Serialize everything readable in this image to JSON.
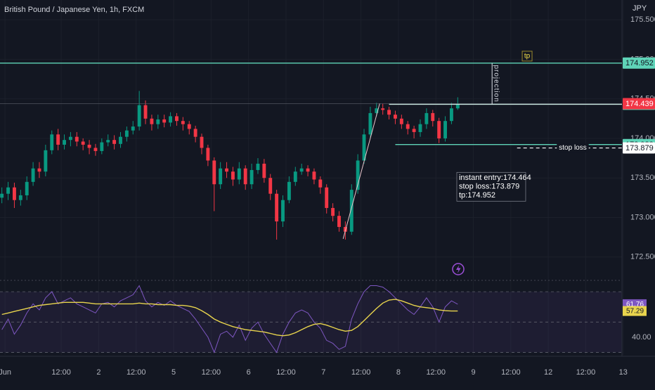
{
  "chart_data": [
    {
      "type": "candlestick",
      "title": "British Pound / Japanese Yen, 1h, FXCM",
      "unit_label": "JPY",
      "x": [
        -1,
        1,
        3,
        5,
        7,
        9,
        11,
        13,
        15,
        17,
        19,
        21,
        23,
        25,
        27,
        29,
        31,
        33,
        35,
        37,
        39,
        41,
        43,
        45,
        47,
        49,
        51,
        53,
        55,
        57,
        59,
        61,
        63,
        65,
        67,
        69,
        71,
        73,
        75,
        77,
        79,
        81,
        83,
        85,
        87,
        89,
        91,
        93,
        95,
        97,
        99,
        101,
        103,
        105,
        107,
        109,
        111,
        113,
        115,
        117,
        119,
        121,
        123,
        125,
        127,
        129,
        131,
        133,
        135,
        137,
        139,
        141,
        143,
        145
      ],
      "open": [
        173.25,
        173.3,
        173.38,
        173.22,
        173.28,
        173.45,
        173.62,
        173.58,
        173.85,
        174.05,
        173.92,
        173.98,
        174.02,
        173.96,
        173.92,
        173.88,
        173.84,
        173.95,
        173.98,
        173.93,
        174.02,
        174.1,
        174.15,
        174.42,
        174.25,
        174.18,
        174.24,
        174.2,
        174.28,
        174.22,
        174.18,
        174.12,
        174.02,
        173.88,
        173.72,
        173.42,
        173.62,
        173.58,
        173.48,
        173.62,
        173.42,
        173.6,
        173.68,
        173.5,
        173.3,
        172.95,
        173.22,
        173.45,
        173.58,
        173.62,
        173.58,
        173.48,
        173.38,
        173.12,
        173.02,
        172.88,
        172.82,
        173.35,
        173.72,
        174.05,
        174.32,
        174.38,
        174.36,
        174.3,
        174.25,
        174.18,
        174.12,
        174.08,
        174.18,
        174.32,
        174.22,
        174.0,
        174.22,
        174.38
      ],
      "high": [
        173.38,
        173.45,
        173.44,
        173.35,
        173.52,
        173.7,
        173.7,
        173.92,
        174.1,
        174.12,
        174.05,
        174.08,
        174.08,
        174.0,
        173.98,
        173.93,
        174.0,
        174.05,
        174.04,
        174.08,
        174.15,
        174.22,
        174.6,
        174.48,
        174.3,
        174.3,
        174.3,
        174.33,
        174.32,
        174.27,
        174.22,
        174.16,
        174.06,
        173.92,
        173.76,
        173.7,
        173.7,
        173.64,
        173.7,
        173.66,
        173.68,
        173.75,
        173.74,
        173.55,
        173.35,
        173.28,
        173.52,
        173.64,
        173.68,
        173.66,
        173.62,
        173.52,
        173.42,
        173.18,
        173.08,
        172.95,
        173.42,
        173.8,
        174.12,
        174.4,
        174.45,
        174.44,
        174.4,
        174.35,
        174.3,
        174.22,
        174.16,
        174.24,
        174.38,
        174.36,
        174.26,
        174.28,
        174.45,
        174.52
      ],
      "low": [
        173.18,
        173.22,
        173.12,
        173.15,
        173.22,
        173.4,
        173.5,
        173.52,
        173.8,
        173.85,
        173.86,
        173.9,
        173.9,
        173.85,
        173.8,
        173.78,
        173.8,
        173.9,
        173.86,
        173.88,
        173.96,
        174.05,
        174.1,
        174.18,
        174.1,
        174.12,
        174.14,
        174.15,
        174.16,
        174.1,
        174.05,
        173.95,
        173.8,
        173.65,
        173.08,
        173.36,
        173.5,
        173.4,
        173.42,
        173.35,
        173.36,
        173.55,
        173.44,
        173.22,
        172.72,
        172.88,
        173.18,
        173.4,
        173.54,
        173.52,
        173.42,
        173.3,
        173.05,
        172.95,
        172.82,
        172.72,
        172.78,
        173.3,
        173.68,
        174.0,
        174.28,
        174.3,
        174.24,
        174.18,
        174.12,
        174.05,
        174.0,
        174.02,
        174.12,
        174.15,
        173.94,
        173.96,
        174.18,
        174.36
      ],
      "close": [
        173.3,
        173.38,
        173.22,
        173.28,
        173.45,
        173.62,
        173.58,
        173.85,
        174.05,
        173.92,
        173.98,
        174.02,
        173.96,
        173.92,
        173.88,
        173.84,
        173.95,
        173.98,
        173.93,
        174.02,
        174.1,
        174.15,
        174.42,
        174.25,
        174.18,
        174.24,
        174.2,
        174.28,
        174.22,
        174.18,
        174.12,
        174.02,
        173.88,
        173.72,
        173.42,
        173.62,
        173.58,
        173.48,
        173.62,
        173.42,
        173.6,
        173.68,
        173.5,
        173.3,
        172.95,
        173.22,
        173.45,
        173.58,
        173.62,
        173.58,
        173.48,
        173.38,
        173.12,
        173.02,
        172.88,
        172.82,
        173.35,
        173.72,
        174.05,
        174.32,
        174.38,
        174.36,
        174.3,
        174.25,
        174.18,
        174.12,
        174.08,
        174.18,
        174.32,
        174.22,
        174.0,
        174.22,
        174.38,
        174.439
      ],
      "up_color": "#089981",
      "down_color": "#f23645",
      "last_price_color": "#f23645",
      "xlim": [
        -1.6,
        197.6
      ],
      "xticks": [
        {
          "value": 0,
          "label": "Jun"
        },
        {
          "value": 18,
          "label": "12:00"
        },
        {
          "value": 30,
          "label": "2"
        },
        {
          "value": 42,
          "label": "12:00"
        },
        {
          "value": 54,
          "label": "5"
        },
        {
          "value": 66,
          "label": "12:00"
        },
        {
          "value": 78,
          "label": "6"
        },
        {
          "value": 90,
          "label": "12:00"
        },
        {
          "value": 102,
          "label": "7"
        },
        {
          "value": 114,
          "label": "12:00"
        },
        {
          "value": 126,
          "label": "8"
        },
        {
          "value": 138,
          "label": "12:00"
        },
        {
          "value": 150,
          "label": "9"
        },
        {
          "value": 162,
          "label": "12:00"
        },
        {
          "value": 174,
          "label": "12"
        },
        {
          "value": 186,
          "label": "12:00"
        },
        {
          "value": 198,
          "label": "13"
        }
      ],
      "ylim": [
        172.24,
        175.75
      ],
      "yticks": [
        {
          "value": 172.5,
          "label": "172.500"
        },
        {
          "value": 173,
          "label": "173.000"
        },
        {
          "value": 173.5,
          "label": "173.500"
        },
        {
          "value": 174,
          "label": "174.000"
        },
        {
          "value": 174.5,
          "label": "174.500"
        },
        {
          "value": 175,
          "label": "175.000"
        },
        {
          "value": 175.5,
          "label": "175.500"
        }
      ],
      "grid": true,
      "horizontal_lines": [
        {
          "value": 174.952,
          "from_x": -1.6,
          "color": "#5fd4b8",
          "tag_color": "#5fd4b8"
        },
        {
          "value": 174.431,
          "from_x": 123,
          "color": "#c8e6df",
          "tag_color": "#5fd4b8"
        },
        {
          "value": 173.922,
          "from_x": 125,
          "color": "#5fd4b8",
          "tag_color": "#5fd4b8"
        },
        {
          "value": 173.879,
          "from_x": 164,
          "color": "#ffffff",
          "tag_color": "#ffffff",
          "dashed": true,
          "label": "stop loss"
        }
      ],
      "vertical_line": {
        "x": 156,
        "from": 174.431,
        "to": 174.952,
        "label": "projection"
      },
      "trend_line": {
        "x": [
          108.3,
          120
        ],
        "y": [
          172.73,
          174.44
        ]
      },
      "marker": {
        "x": 167,
        "y": 175.04,
        "label": "tp"
      },
      "info_box": {
        "x": 144.7,
        "y": 173.57,
        "lines": [
          "instant entry:174.464",
          "stop loss:173.879",
          "tp:174.952"
        ]
      }
    },
    {
      "type": "line",
      "x": [
        -1,
        1,
        3,
        5,
        7,
        9,
        11,
        13,
        15,
        17,
        19,
        21,
        23,
        25,
        27,
        29,
        31,
        33,
        35,
        37,
        39,
        41,
        43,
        45,
        47,
        49,
        51,
        53,
        55,
        57,
        59,
        61,
        63,
        65,
        67,
        69,
        71,
        73,
        75,
        77,
        79,
        81,
        83,
        85,
        87,
        89,
        91,
        93,
        95,
        97,
        99,
        101,
        103,
        105,
        107,
        109,
        111,
        113,
        115,
        117,
        119,
        121,
        123,
        125,
        127,
        129,
        131,
        133,
        135,
        137,
        139,
        141,
        143,
        145
      ],
      "series": [
        {
          "color": "#7e57c2",
          "values": [
            45,
            52,
            42,
            48,
            56,
            62,
            58,
            66,
            70,
            62,
            64,
            66,
            62,
            60,
            58,
            56,
            62,
            63,
            60,
            64,
            66,
            68,
            74,
            64,
            60,
            63,
            61,
            64,
            61,
            59,
            57,
            52,
            46,
            40,
            30,
            42,
            44,
            40,
            48,
            38,
            46,
            50,
            42,
            36,
            30,
            42,
            50,
            56,
            58,
            56,
            50,
            46,
            38,
            36,
            32,
            34,
            52,
            62,
            70,
            74,
            74,
            73,
            70,
            66,
            62,
            58,
            55,
            60,
            66,
            60,
            50,
            60,
            64,
            61.76
          ]
        },
        {
          "color": "#e8d44d",
          "values": [
            55,
            56,
            57,
            58,
            59,
            60,
            61,
            61.5,
            62,
            62.5,
            63,
            63,
            63,
            63,
            62.5,
            62,
            62,
            62,
            62,
            62,
            62,
            62,
            62.5,
            62,
            62,
            61.5,
            61.5,
            61.5,
            61,
            61,
            60.5,
            59.5,
            57.5,
            55,
            52,
            50,
            48.5,
            47,
            46,
            45,
            44.5,
            44,
            43.5,
            42.5,
            41.5,
            41,
            41.5,
            43,
            45,
            47,
            48.5,
            49,
            48,
            46.5,
            45,
            44,
            44.5,
            47,
            51,
            55,
            59,
            62.5,
            64.5,
            65,
            64,
            62.5,
            61,
            60,
            59.5,
            59,
            58,
            57.5,
            57.3,
            57.29
          ]
        }
      ],
      "xlim": [
        -1.6,
        197.6
      ],
      "ylim": [
        28.4,
        73.3
      ],
      "yticks": [
        {
          "value": 40,
          "label": "40.00"
        }
      ],
      "levels": [
        30,
        50,
        70
      ],
      "grid": true
    }
  ]
}
